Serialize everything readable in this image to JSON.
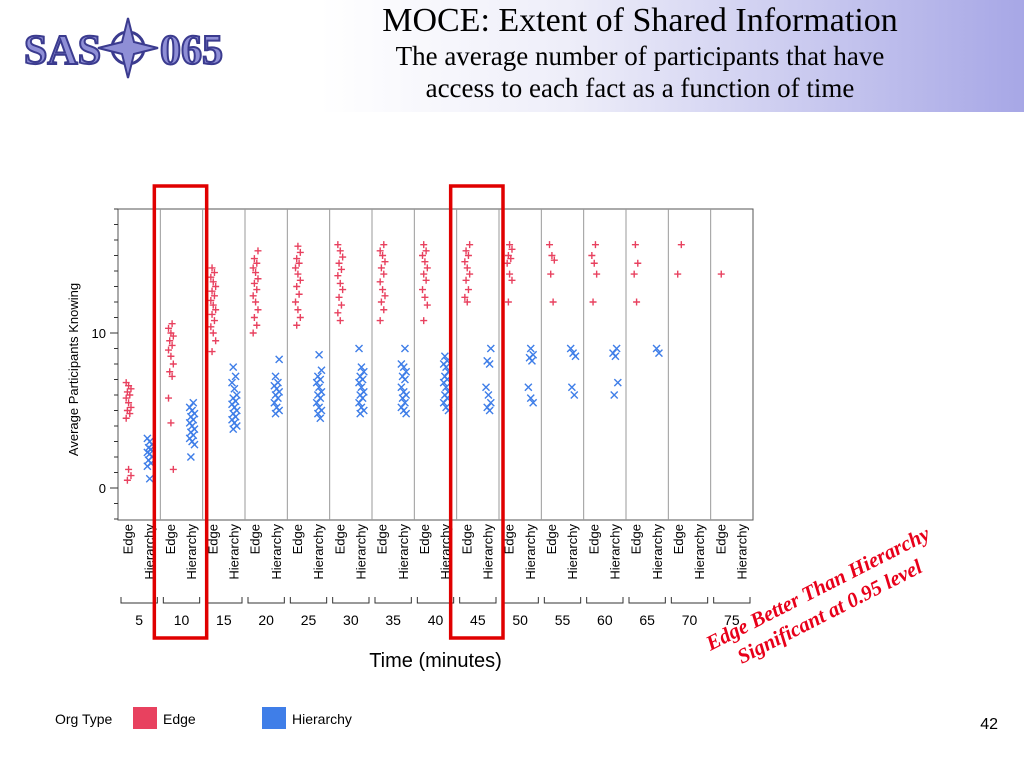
{
  "slide": {
    "title": "MOCE: Extent of Shared Information",
    "subtitle_line1": "The average number of participants that have",
    "subtitle_line2": "access to each fact as a function of time",
    "logo_text": "SAS-065",
    "significance_line1": "Edge Better Than Hierarchy",
    "significance_line2": "Significant at 0.95 level",
    "page_number": "42"
  },
  "legend": {
    "title": "Org Type",
    "items": [
      {
        "label": "Edge",
        "color": "#e8415f"
      },
      {
        "label": "Hierarchy",
        "color": "#3f7ee8"
      }
    ]
  },
  "colors": {
    "edge": "#e8415f",
    "hierarchy": "#3f7ee8",
    "highlight": "#e00000",
    "grid": "#9a9a9a"
  },
  "chart_data": {
    "type": "scatter",
    "ylabel": "Average Participants Knowing",
    "xlabel": "Time (minutes)",
    "y_ticks": [
      0,
      10
    ],
    "ylim": [
      -2,
      18
    ],
    "org_types": [
      "Edge",
      "Hierarchy"
    ],
    "time_minutes": [
      5,
      10,
      15,
      20,
      25,
      30,
      35,
      40,
      45,
      50,
      55,
      60,
      65,
      70,
      75
    ],
    "highlighted_times": [
      10,
      45
    ],
    "series": [
      {
        "name": "Edge",
        "marker": "plus",
        "values": [
          [
            6.8,
            6.6,
            6.4,
            6.2,
            6.0,
            5.8,
            5.5,
            5.2,
            5.0,
            4.8,
            4.5,
            1.2,
            0.8,
            0.5
          ],
          [
            10.6,
            10.3,
            10.0,
            9.8,
            9.5,
            9.2,
            8.9,
            8.5,
            8.0,
            7.5,
            7.2,
            5.8,
            4.2,
            1.2
          ],
          [
            14.2,
            13.9,
            13.6,
            13.3,
            13.0,
            12.7,
            12.4,
            12.1,
            11.8,
            11.5,
            11.2,
            10.8,
            10.4,
            10.0,
            9.5,
            8.8
          ],
          [
            15.3,
            14.8,
            14.5,
            14.2,
            13.9,
            13.5,
            13.2,
            12.8,
            12.4,
            12.0,
            11.5,
            11.0,
            10.5,
            10.0
          ],
          [
            15.6,
            15.2,
            14.8,
            14.5,
            14.2,
            13.8,
            13.4,
            13.0,
            12.5,
            12.0,
            11.5,
            11.0,
            10.5
          ],
          [
            15.7,
            15.3,
            14.9,
            14.5,
            14.1,
            13.7,
            13.2,
            12.8,
            12.3,
            11.8,
            11.3,
            10.8
          ],
          [
            15.7,
            15.3,
            15.0,
            14.6,
            14.2,
            13.8,
            13.3,
            12.8,
            12.4,
            12.0,
            11.5,
            10.8
          ],
          [
            15.7,
            15.3,
            15.0,
            14.6,
            14.2,
            13.8,
            13.4,
            12.8,
            12.3,
            11.8,
            10.8
          ],
          [
            15.7,
            15.3,
            15.0,
            14.6,
            14.2,
            13.8,
            13.4,
            12.8,
            12.3,
            12.0
          ],
          [
            15.7,
            15.4,
            15.0,
            14.8,
            14.5,
            13.8,
            13.4,
            12.0
          ],
          [
            15.7,
            15.0,
            14.7,
            13.8,
            12.0
          ],
          [
            15.7,
            15.0,
            14.5,
            13.8,
            12.0
          ],
          [
            15.7,
            14.5,
            13.8,
            12.0
          ],
          [
            15.7,
            13.8
          ],
          [
            13.8
          ]
        ]
      },
      {
        "name": "Hierarchy",
        "marker": "x",
        "values": [
          [
            3.2,
            3.0,
            2.8,
            2.6,
            2.5,
            2.3,
            2.2,
            2.0,
            1.8,
            1.6,
            1.4,
            0.6
          ],
          [
            5.5,
            5.2,
            5.0,
            4.8,
            4.6,
            4.4,
            4.2,
            4.0,
            3.8,
            3.6,
            3.4,
            3.2,
            3.0,
            2.8,
            2.0
          ],
          [
            7.8,
            7.2,
            6.8,
            6.4,
            6.0,
            5.8,
            5.6,
            5.4,
            5.2,
            5.0,
            4.8,
            4.6,
            4.4,
            4.2,
            4.0,
            3.8
          ],
          [
            8.3,
            7.2,
            6.8,
            6.6,
            6.4,
            6.2,
            6.0,
            5.8,
            5.5,
            5.2,
            5.0,
            4.8
          ],
          [
            8.6,
            7.6,
            7.2,
            7.0,
            6.8,
            6.5,
            6.2,
            6.0,
            5.8,
            5.5,
            5.2,
            5.0,
            4.8,
            4.5
          ],
          [
            9.0,
            7.8,
            7.5,
            7.2,
            7.0,
            6.8,
            6.5,
            6.2,
            6.0,
            5.8,
            5.5,
            5.2,
            5.0,
            4.8
          ],
          [
            9.0,
            8.0,
            7.8,
            7.5,
            7.2,
            7.0,
            6.5,
            6.2,
            6.0,
            5.8,
            5.5,
            5.2,
            5.0,
            4.8
          ],
          [
            8.5,
            8.2,
            8.0,
            7.8,
            7.5,
            7.2,
            7.0,
            6.8,
            6.5,
            6.2,
            6.0,
            5.8,
            5.5,
            5.2,
            5.0
          ],
          [
            9.0,
            8.2,
            8.0,
            6.5,
            6.0,
            5.5,
            5.2,
            5.0
          ],
          [
            9.0,
            8.6,
            8.4,
            8.2,
            6.5,
            5.8,
            5.5
          ],
          [
            9.0,
            8.7,
            8.5,
            6.5,
            6.0
          ],
          [
            9.0,
            8.7,
            8.5,
            6.8,
            6.0
          ],
          [
            9.0,
            8.7
          ]
        ]
      }
    ]
  }
}
